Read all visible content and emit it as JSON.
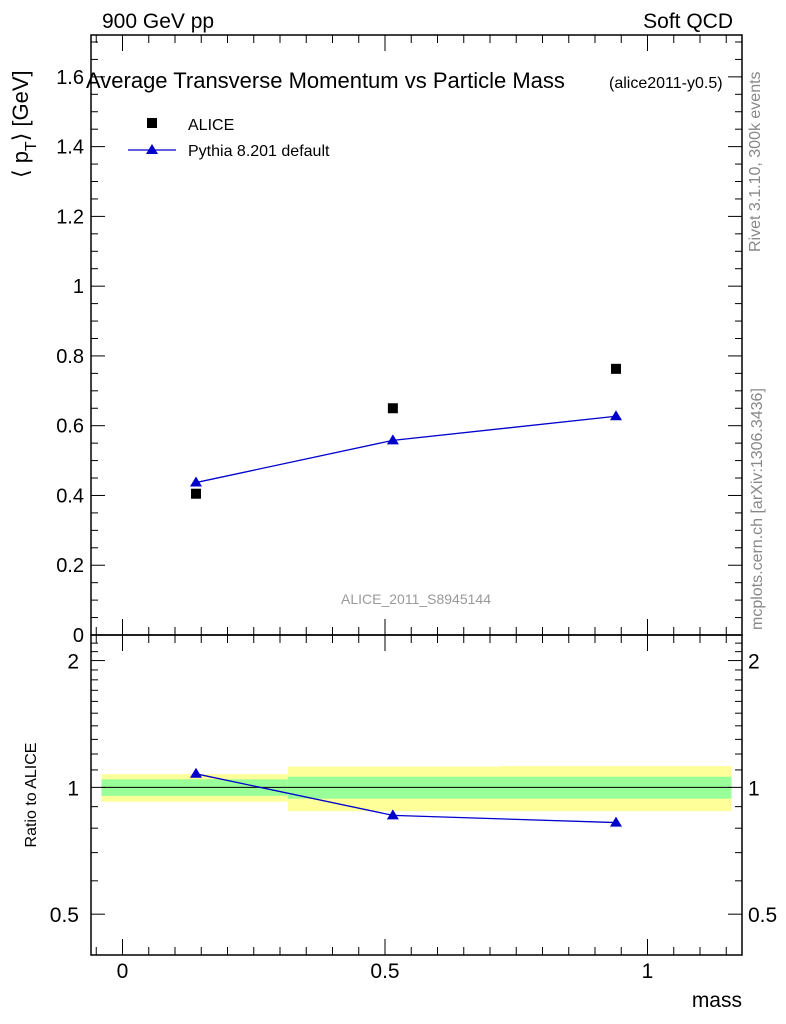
{
  "header": {
    "left": "900 GeV pp",
    "right": "Soft QCD"
  },
  "side_labels": {
    "rivet": "Rivet 3.1.10,  300k events",
    "mcplots": "mcplots.cern.ch [arXiv:1306.3436]"
  },
  "colors": {
    "data": "#000000",
    "mc": "#0000cc",
    "band_inner": "#99ff99",
    "band_outer": "#ffff99",
    "watermark": "#999999",
    "side_text": "#888888"
  },
  "chart_data": [
    {
      "type": "scatter",
      "panel": "main",
      "title": "Average Transverse Momentum vs Particle Mass",
      "subtitle": "(alice2011-y0.5)",
      "watermark": "ALICE_2011_S8945144",
      "ylabel": "⟨ p",
      "ylabel_sub": "T",
      "ylabel_unit": "⟩ [GeV]",
      "xlim": [
        -0.06,
        1.18
      ],
      "ylim": [
        0,
        1.72
      ],
      "yticks": [
        0,
        0.2,
        0.4,
        0.6,
        0.8,
        1,
        1.2,
        1.4,
        1.6
      ],
      "ytick_labels": [
        "0",
        "0.2",
        "0.4",
        "0.6",
        "0.8",
        "1",
        "1.2",
        "1.4",
        "1.6"
      ],
      "legend_position": "top-left",
      "series": [
        {
          "name": "ALICE",
          "marker": "square",
          "x": [
            0.14,
            0.515,
            0.94
          ],
          "y": [
            0.405,
            0.65,
            0.763
          ]
        },
        {
          "name": "Pythia 8.201 default",
          "marker": "triangle",
          "line": true,
          "x": [
            0.14,
            0.515,
            0.94
          ],
          "y": [
            0.437,
            0.558,
            0.627
          ]
        }
      ]
    },
    {
      "type": "line",
      "panel": "ratio",
      "ylabel": "Ratio to ALICE",
      "xlabel": "mass",
      "xlim": [
        -0.06,
        1.18
      ],
      "ylim": [
        0.4,
        2.3
      ],
      "y_scale": "log",
      "xticks": [
        0,
        0.5,
        1
      ],
      "xtick_labels": [
        "0",
        "0.5",
        "1"
      ],
      "yticks": [
        0.5,
        1,
        2
      ],
      "ytick_labels": [
        "0.5",
        "1",
        "2"
      ],
      "reference_line": 1,
      "uncertainty_bands": [
        {
          "x_range": [
            -0.04,
            0.315
          ],
          "inner": [
            0.955,
            1.045
          ],
          "outer": [
            0.925,
            1.075
          ]
        },
        {
          "x_range": [
            0.315,
            0.72
          ],
          "inner": [
            0.94,
            1.06
          ],
          "outer": [
            0.878,
            1.12
          ]
        },
        {
          "x_range": [
            0.72,
            1.16
          ],
          "inner": [
            0.94,
            1.06
          ],
          "outer": [
            0.878,
            1.123
          ]
        }
      ],
      "series": [
        {
          "name": "Pythia 8.201 default",
          "marker": "triangle",
          "x": [
            0.14,
            0.515,
            0.94
          ],
          "y": [
            1.077,
            0.858,
            0.825
          ]
        }
      ]
    }
  ]
}
